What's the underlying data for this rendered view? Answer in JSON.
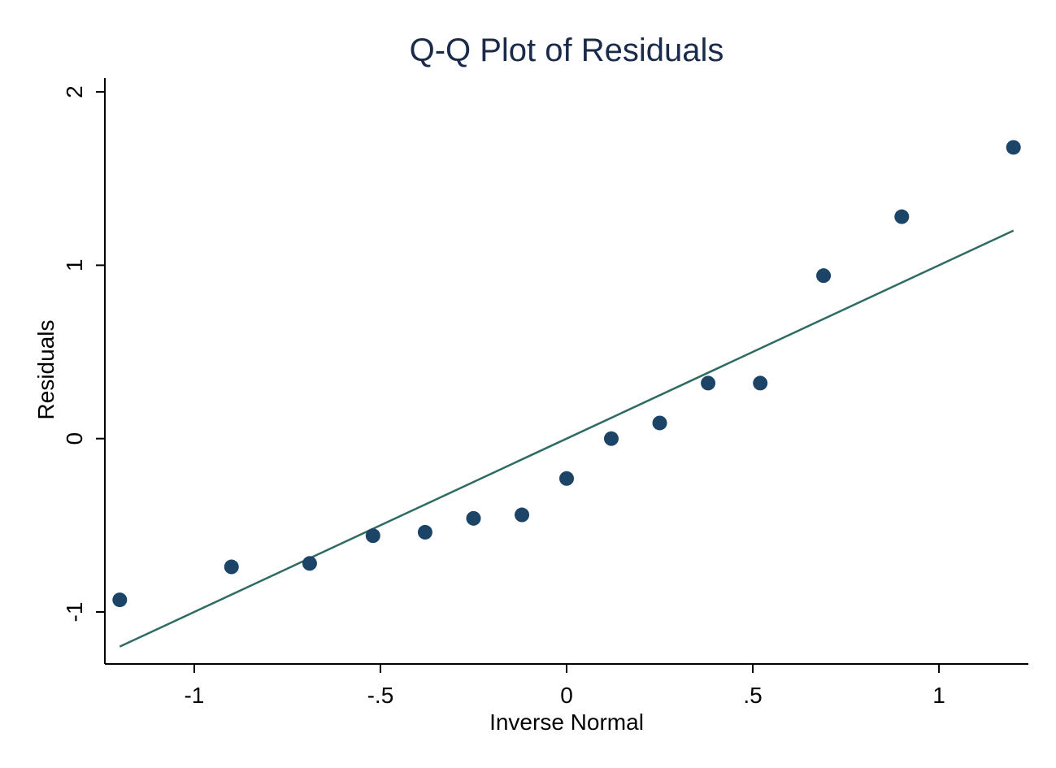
{
  "chart_data": {
    "type": "scatter",
    "title": "Q-Q Plot of Residuals",
    "xlabel": "Inverse Normal",
    "ylabel": "Residuals",
    "xlim": [
      -1.24,
      1.24
    ],
    "ylim": [
      -1.3,
      2.08
    ],
    "x_ticks": [
      {
        "value": -1,
        "label": "-1"
      },
      {
        "value": -0.5,
        "label": "-.5"
      },
      {
        "value": 0,
        "label": "0"
      },
      {
        "value": 0.5,
        "label": ".5"
      },
      {
        "value": 1,
        "label": "1"
      }
    ],
    "y_ticks": [
      {
        "value": -1,
        "label": "-1"
      },
      {
        "value": 0,
        "label": "0"
      },
      {
        "value": 1,
        "label": "1"
      },
      {
        "value": 2,
        "label": "2"
      }
    ],
    "grid": false,
    "series": [
      {
        "type": "scatter",
        "color": "#1b4466",
        "points": [
          {
            "x": -1.2,
            "y": -0.93
          },
          {
            "x": -0.9,
            "y": -0.74
          },
          {
            "x": -0.69,
            "y": -0.72
          },
          {
            "x": -0.52,
            "y": -0.56
          },
          {
            "x": -0.38,
            "y": -0.54
          },
          {
            "x": -0.25,
            "y": -0.46
          },
          {
            "x": -0.12,
            "y": -0.44
          },
          {
            "x": 0.0,
            "y": -0.23
          },
          {
            "x": 0.12,
            "y": 0.0
          },
          {
            "x": 0.25,
            "y": 0.09
          },
          {
            "x": 0.38,
            "y": 0.32
          },
          {
            "x": 0.52,
            "y": 0.32
          },
          {
            "x": 0.69,
            "y": 0.94
          },
          {
            "x": 0.9,
            "y": 1.28
          },
          {
            "x": 1.2,
            "y": 1.68
          }
        ]
      },
      {
        "type": "line",
        "color": "#2e6b63",
        "points": [
          {
            "x": -1.2,
            "y": -1.2
          },
          {
            "x": 1.2,
            "y": 1.2
          }
        ]
      }
    ]
  }
}
